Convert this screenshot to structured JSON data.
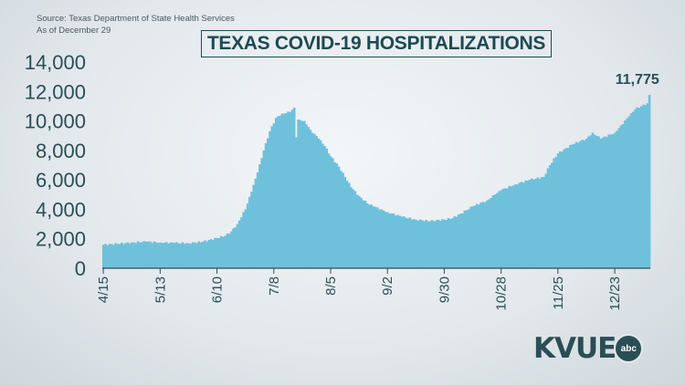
{
  "source_line1": "Source: Texas Department of State Health Services",
  "source_line2": "As of December 29",
  "title": "TEXAS COVID-19 HOSPITALIZATIONS",
  "logo": {
    "text": "KVUE",
    "badge": "abc"
  },
  "colors": {
    "area": "#6fc1db",
    "axis": "#2b4e55",
    "title": "#1d4a52"
  },
  "chart_data": {
    "type": "area",
    "title": "TEXAS COVID-19 HOSPITALIZATIONS",
    "xlabel": "",
    "ylabel": "",
    "ylim": [
      0,
      14000
    ],
    "yticks": [
      0,
      2000,
      4000,
      6000,
      8000,
      10000,
      12000,
      14000
    ],
    "ytick_labels": [
      "0",
      "2,000",
      "4,000",
      "6,000",
      "8,000",
      "10,000",
      "12,000",
      "14,000"
    ],
    "xtick_labels": [
      "4/15",
      "5/13",
      "6/10",
      "7/8",
      "8/5",
      "9/2",
      "9/30",
      "10/28",
      "11/25",
      "12/23"
    ],
    "xtick_day_index": [
      0,
      28,
      56,
      84,
      112,
      140,
      168,
      196,
      224,
      252
    ],
    "x_start": "4/15",
    "x_end": "12/29",
    "annotation": {
      "label": "11,775",
      "x": "12/29",
      "value": 11775
    },
    "grid": false,
    "keypoints": [
      [
        0,
        1600
      ],
      [
        7,
        1650
      ],
      [
        14,
        1750
      ],
      [
        21,
        1800
      ],
      [
        28,
        1750
      ],
      [
        35,
        1720
      ],
      [
        42,
        1700
      ],
      [
        49,
        1800
      ],
      [
        56,
        2050
      ],
      [
        60,
        2200
      ],
      [
        63,
        2500
      ],
      [
        66,
        3000
      ],
      [
        70,
        4000
      ],
      [
        73,
        5200
      ],
      [
        76,
        6500
      ],
      [
        79,
        8000
      ],
      [
        82,
        9300
      ],
      [
        85,
        10200
      ],
      [
        88,
        10500
      ],
      [
        92,
        10600
      ],
      [
        94,
        10900
      ],
      [
        95,
        8900
      ],
      [
        96,
        10100
      ],
      [
        99,
        10000
      ],
      [
        102,
        9400
      ],
      [
        106,
        8800
      ],
      [
        109,
        8300
      ],
      [
        112,
        7600
      ],
      [
        116,
        6900
      ],
      [
        119,
        6200
      ],
      [
        122,
        5500
      ],
      [
        126,
        4900
      ],
      [
        130,
        4400
      ],
      [
        133,
        4200
      ],
      [
        137,
        4000
      ],
      [
        140,
        3800
      ],
      [
        147,
        3500
      ],
      [
        154,
        3300
      ],
      [
        161,
        3200
      ],
      [
        168,
        3300
      ],
      [
        172,
        3400
      ],
      [
        176,
        3700
      ],
      [
        182,
        4200
      ],
      [
        189,
        4600
      ],
      [
        193,
        5000
      ],
      [
        196,
        5300
      ],
      [
        203,
        5700
      ],
      [
        210,
        6000
      ],
      [
        217,
        6200
      ],
      [
        220,
        7000
      ],
      [
        224,
        7800
      ],
      [
        231,
        8400
      ],
      [
        238,
        8800
      ],
      [
        241,
        9200
      ],
      [
        245,
        8800
      ],
      [
        252,
        9200
      ],
      [
        255,
        9700
      ],
      [
        259,
        10300
      ],
      [
        262,
        10800
      ],
      [
        265,
        11000
      ],
      [
        268,
        11200
      ],
      [
        269,
        11775
      ]
    ]
  }
}
